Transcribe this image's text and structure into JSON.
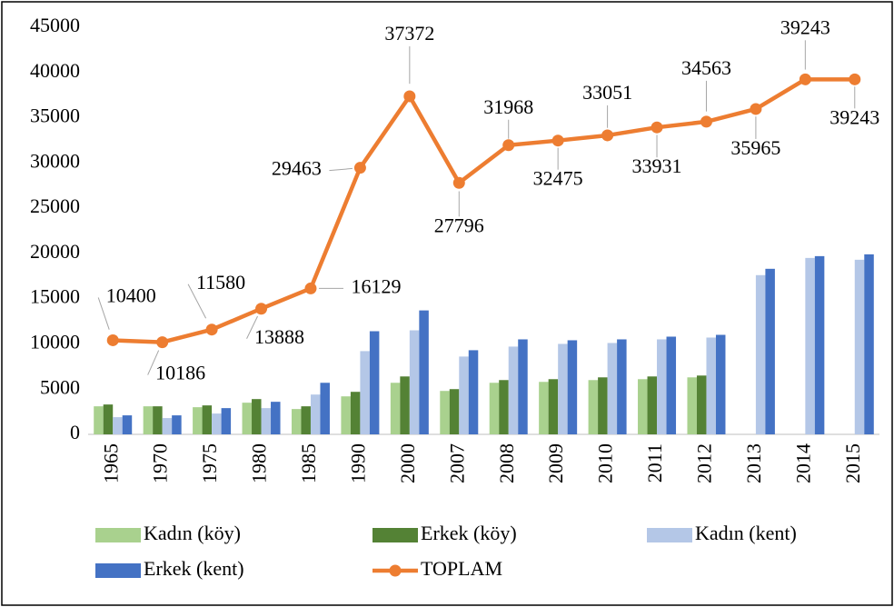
{
  "chart_data": {
    "type": "bar_line",
    "categories": [
      "1965",
      "1970",
      "1975",
      "1980",
      "1985",
      "1990",
      "2000",
      "2007",
      "2008",
      "2009",
      "2010",
      "2011",
      "2012",
      "2013",
      "2014",
      "2015"
    ],
    "series": [
      {
        "name": "Kadın (köy)",
        "type": "bar",
        "color": "#a9d18e",
        "values": [
          3100,
          3100,
          3000,
          3500,
          2800,
          4200,
          5700,
          4800,
          5700,
          5800,
          6000,
          6100,
          6300,
          null,
          null,
          null
        ]
      },
      {
        "name": "Erkek (köy)",
        "type": "bar",
        "color": "#548235",
        "values": [
          3300,
          3100,
          3200,
          3900,
          3100,
          4700,
          6400,
          5000,
          6000,
          6100,
          6300,
          6400,
          6500,
          null,
          null,
          null
        ]
      },
      {
        "name": "Kadın (kent)",
        "type": "bar",
        "color": "#b4c7e7",
        "values": [
          1900,
          1800,
          2300,
          2900,
          4400,
          9200,
          11500,
          8600,
          9700,
          10000,
          10100,
          10500,
          10700,
          17600,
          19500,
          19300
        ]
      },
      {
        "name": "Erkek (kent)",
        "type": "bar",
        "color": "#4472c4",
        "values": [
          2100,
          2100,
          2900,
          3600,
          5700,
          11400,
          13700,
          9300,
          10500,
          10400,
          10500,
          10800,
          11000,
          18300,
          19700,
          19900
        ]
      },
      {
        "name": "TOPLAM",
        "type": "line",
        "color": "#ed7d31",
        "values": [
          10400,
          10186,
          11580,
          13888,
          16129,
          29463,
          37372,
          27796,
          31968,
          32475,
          33051,
          33931,
          34563,
          35965,
          39243,
          39243
        ]
      }
    ],
    "ylim": [
      0,
      45000
    ],
    "yticks": [
      0,
      5000,
      10000,
      15000,
      20000,
      25000,
      30000,
      35000,
      40000,
      45000
    ]
  }
}
